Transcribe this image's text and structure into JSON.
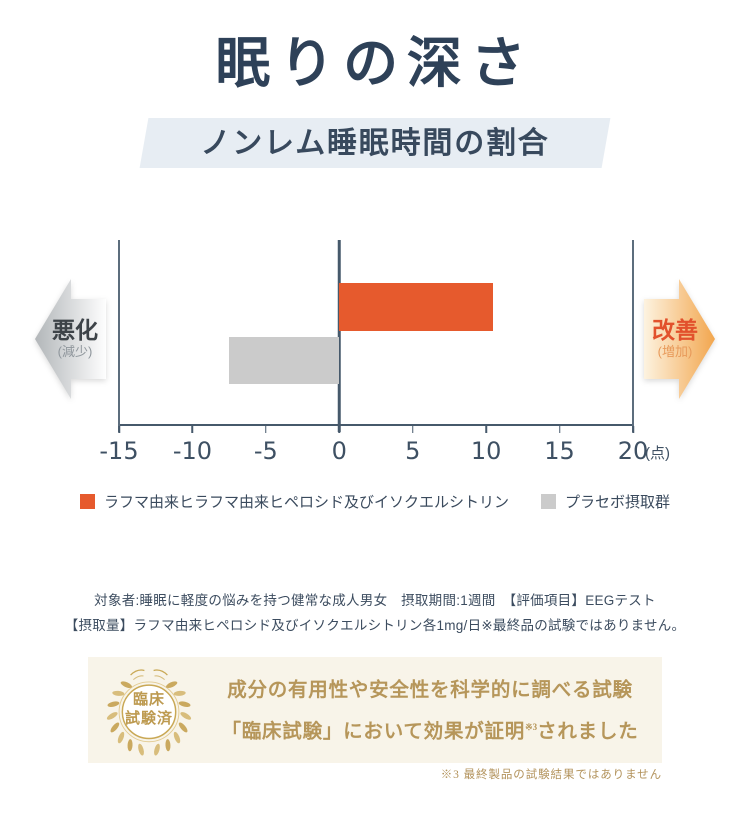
{
  "page": {
    "title": "眠りの深さ",
    "subtitle": "ノンレム睡眠時間の割合"
  },
  "chart_data": {
    "type": "bar",
    "orientation": "horizontal",
    "title": "ノンレム睡眠時間の割合",
    "series": [
      {
        "name": "ラフマ由来ヒラフマ由来ヒペロシド及びイソクエルシトリン",
        "value": 10.5,
        "color": "#e65a2d"
      },
      {
        "name": "プラセボ摂取群",
        "value": -7.5,
        "color": "#cbcbcb"
      }
    ],
    "xlim": [
      -15,
      20
    ],
    "ticks": [
      -15,
      -10,
      -5,
      0,
      5,
      10,
      15,
      20
    ],
    "axis_lines": [
      -15,
      0,
      20
    ],
    "unit": "(点)",
    "grid": false,
    "legend_position": "bottom",
    "left_label": {
      "main": "悪化",
      "sub": "(減少)"
    },
    "right_label": {
      "main": "改善",
      "sub": "(増加)"
    }
  },
  "notes": {
    "line1": "対象者:睡眠に軽度の悩みを持つ健常な成人男女　摂取期間:1週間　【評価項目】EEGテスト",
    "line2": "【摂取量】ラフマ由来ヒペロシド及びイソクエルシトリン各1mg/日※最終品の試験ではありません。"
  },
  "panel": {
    "badge_line1": "臨床",
    "badge_line2": "試験済",
    "line1": "成分の有用性や安全性を科学的に調べる試験",
    "line2_before": "「臨床試験」において効果が証明",
    "line2_sup": "※3",
    "line2_after": "されました",
    "footnote": "※3 最終製品の試験結果ではありません"
  },
  "colors": {
    "title_navy": "#2e4158",
    "band_bg": "#e7edf3",
    "bar_orange": "#e65a2d",
    "bar_gray": "#cbcbcb",
    "axis": "#46596b",
    "gold_text": "#b6965a",
    "panel_bg": "#f8f4e9",
    "arrow_gray_tip": "#b4b8bb",
    "arrow_orange_tip": "#f2a64e"
  }
}
